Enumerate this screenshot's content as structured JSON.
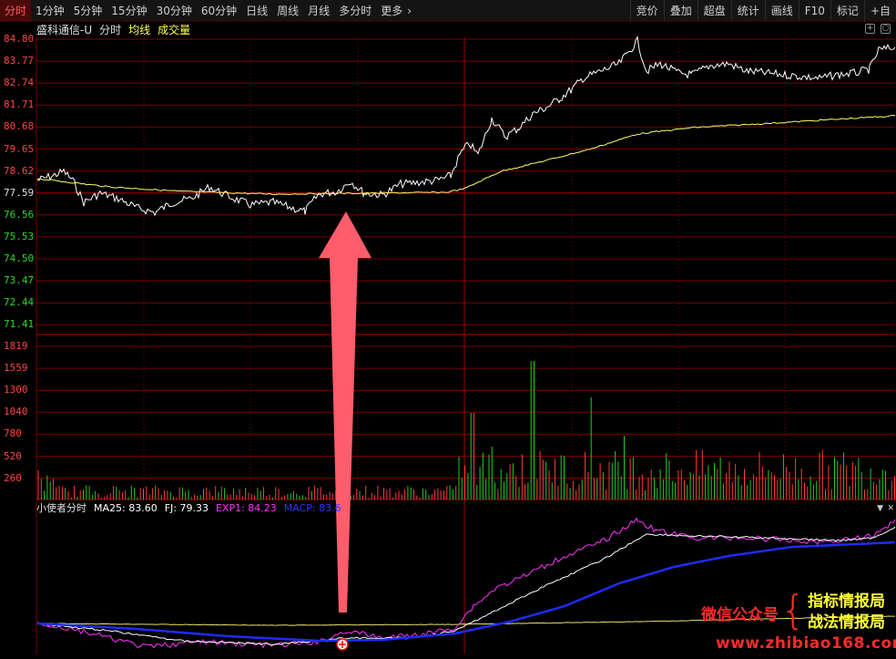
{
  "toolbar": {
    "left": [
      "分时",
      "1分钟",
      "5分钟",
      "15分钟",
      "30分钟",
      "60分钟",
      "日线",
      "周线",
      "月线",
      "多分时",
      "更多"
    ],
    "more_arrow": "›",
    "right": [
      "竞价",
      "叠加",
      "超盘",
      "统计",
      "画线",
      "F10",
      "标记",
      "+自"
    ]
  },
  "info": {
    "stock": "盛科通信-U",
    "mode": "分时",
    "avg": "均线",
    "vol": "成交量"
  },
  "price_axis": [
    "84.80",
    "83.77",
    "82.74",
    "81.71",
    "80.68",
    "79.65",
    "78.62",
    "77.59",
    "76.56",
    "75.53",
    "74.50",
    "73.47",
    "72.44",
    "71.41"
  ],
  "price_axis_colors": {
    "up": "#ff4444",
    "base": "#e0e0e0",
    "down": "#22dd22"
  },
  "volume_axis": [
    "1819",
    "1559",
    "1300",
    "1040",
    "780",
    "520",
    "260"
  ],
  "indicator": {
    "name": "小使者分时",
    "ma25": "MA25: 83.60",
    "fj": "FJ: 79.33",
    "exp1": "EXP1: 84.23",
    "macp": "MACP: 83.6"
  },
  "watermark": {
    "left": "微信公众号",
    "brace": "{",
    "line1": "指标情报局",
    "line2": "战法情报局",
    "url": "www.zhibiao168.com"
  },
  "colors": {
    "grid": "#7a0000",
    "price": "#ffffff",
    "avg": "#ffff66",
    "vol_up": "#ff3b3b",
    "vol_down": "#22cc22",
    "arrow": "#ff5c6c",
    "exp1": "#ff33ff",
    "macp": "#1e2cff",
    "ma25": "#ffffff",
    "fj": "#e8e070"
  }
}
